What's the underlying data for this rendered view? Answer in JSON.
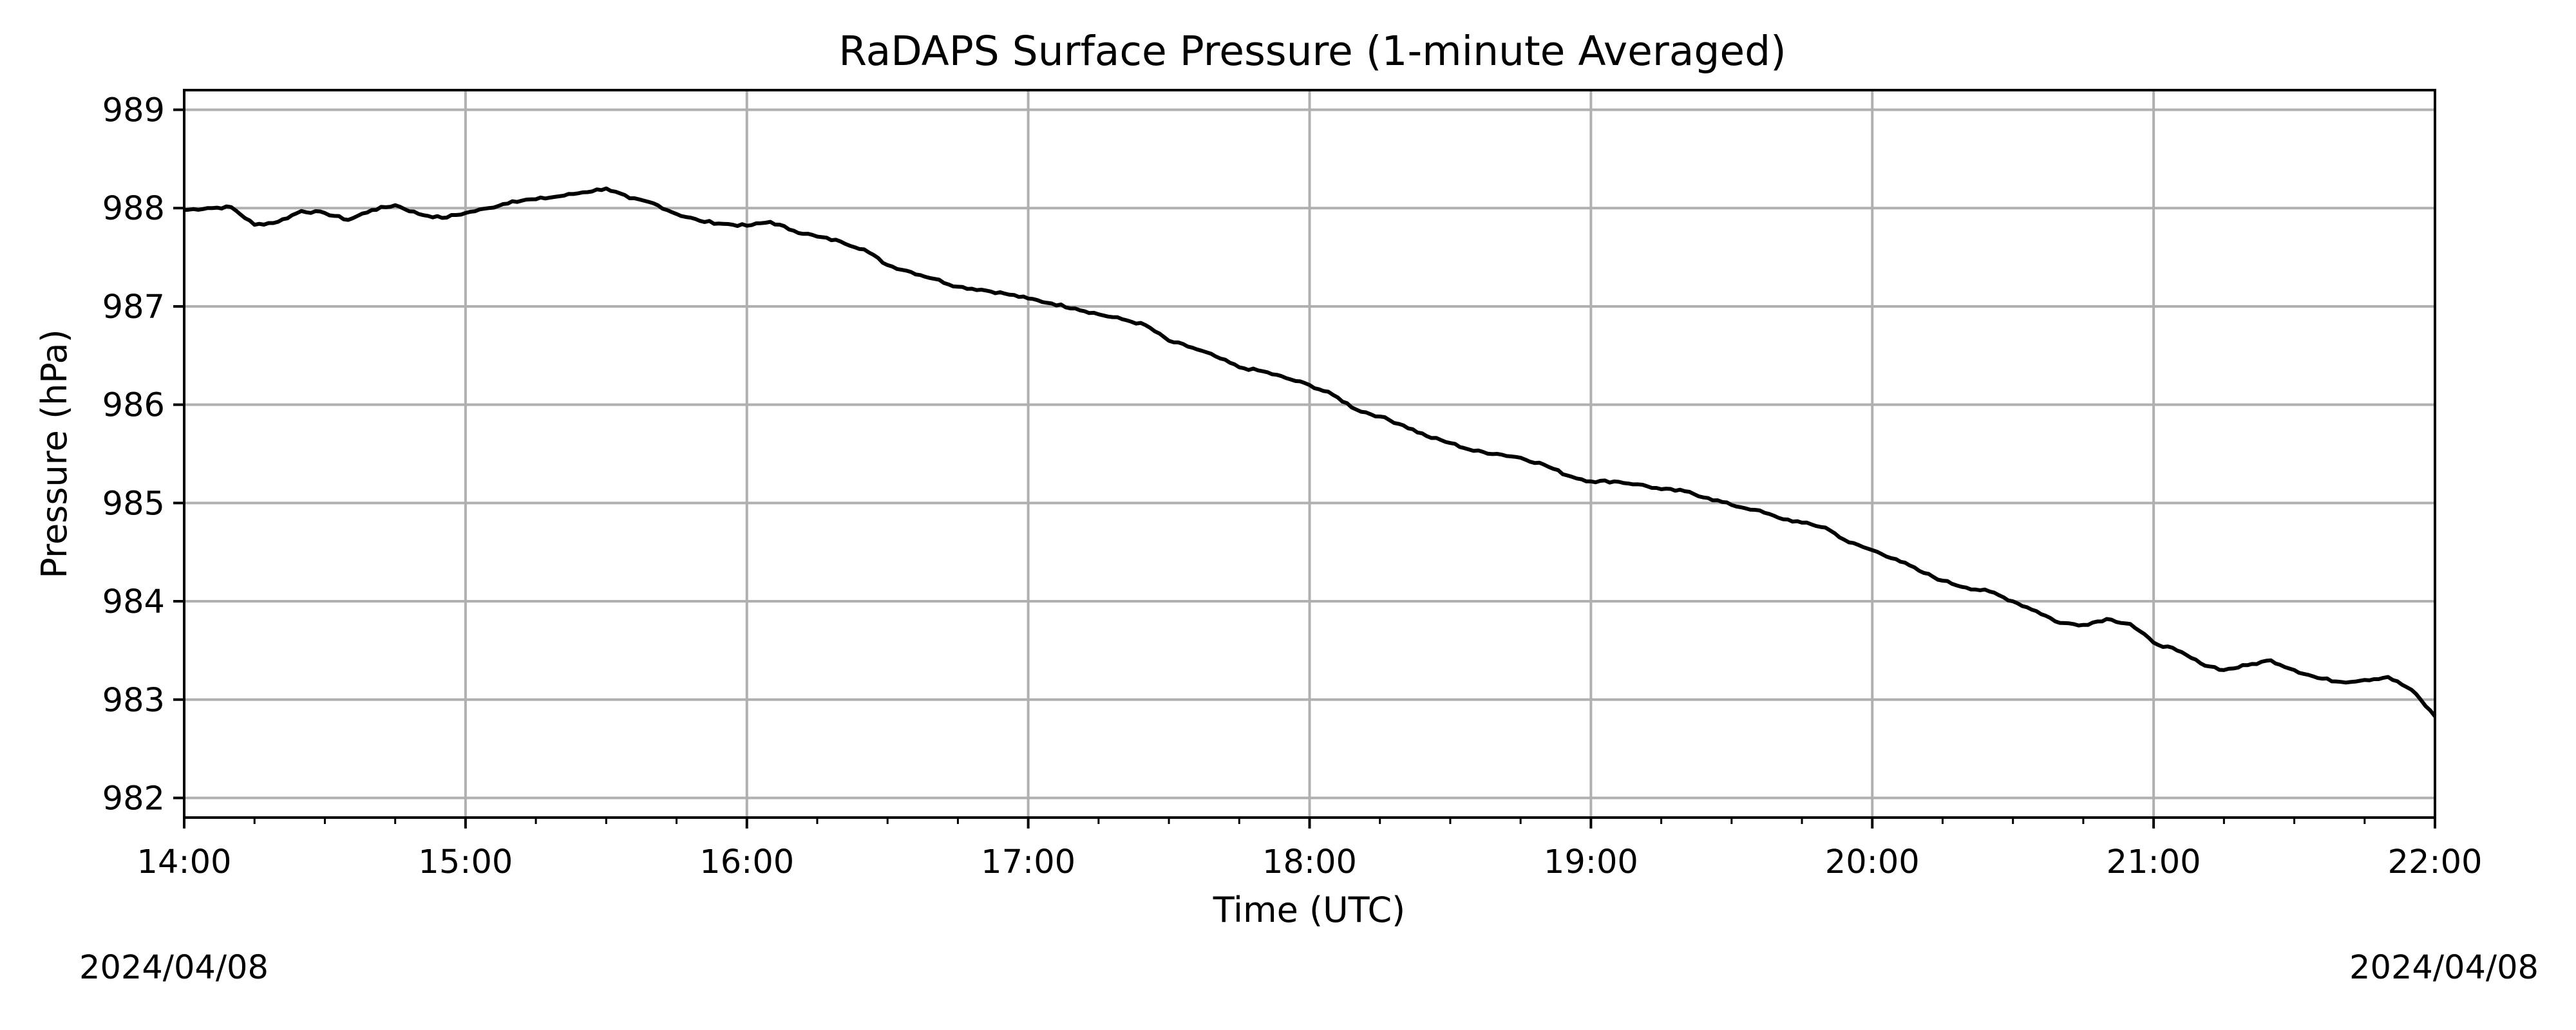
{
  "chart_data": {
    "type": "line",
    "title": "RaDAPS Surface Pressure (1-minute Averaged)",
    "xlabel": "Time (UTC)",
    "ylabel": "Pressure (hPa)",
    "x_ticks": [
      "14:00",
      "15:00",
      "16:00",
      "17:00",
      "18:00",
      "19:00",
      "20:00",
      "21:00",
      "22:00"
    ],
    "y_ticks": [
      982,
      983,
      984,
      985,
      986,
      987,
      988,
      989
    ],
    "xlim": [
      "14:00",
      "22:00"
    ],
    "ylim": [
      981.8,
      989.2
    ],
    "grid": true,
    "line_color": "#000000",
    "series": [
      {
        "x": [
          "14:00",
          "14:05",
          "14:10",
          "14:15",
          "14:20",
          "14:25",
          "14:30",
          "14:35",
          "14:40",
          "14:45",
          "14:50",
          "14:55",
          "15:00",
          "15:05",
          "15:10",
          "15:15",
          "15:20",
          "15:25",
          "15:30",
          "15:35",
          "15:40",
          "15:45",
          "15:50",
          "15:55",
          "16:00",
          "16:05",
          "16:10",
          "16:15",
          "16:20",
          "16:25",
          "16:30",
          "16:35",
          "16:40",
          "16:45",
          "16:50",
          "16:55",
          "17:00",
          "17:05",
          "17:10",
          "17:15",
          "17:20",
          "17:25",
          "17:30",
          "17:35",
          "17:40",
          "17:45",
          "17:50",
          "17:55",
          "18:00",
          "18:05",
          "18:10",
          "18:15",
          "18:20",
          "18:25",
          "18:30",
          "18:35",
          "18:40",
          "18:45",
          "18:50",
          "18:55",
          "19:00",
          "19:05",
          "19:10",
          "19:15",
          "19:20",
          "19:25",
          "19:30",
          "19:35",
          "19:40",
          "19:45",
          "19:50",
          "19:55",
          "20:00",
          "20:05",
          "20:10",
          "20:15",
          "20:20",
          "20:25",
          "20:30",
          "20:35",
          "20:40",
          "20:45",
          "20:50",
          "20:55",
          "21:00",
          "21:05",
          "21:10",
          "21:15",
          "21:20",
          "21:25",
          "21:30",
          "21:35",
          "21:40",
          "21:45",
          "21:50",
          "21:55",
          "22:00"
        ],
        "y": [
          987.98,
          988.0,
          988.01,
          987.83,
          987.86,
          987.97,
          987.95,
          987.88,
          987.98,
          988.03,
          987.94,
          987.9,
          987.95,
          988.0,
          988.07,
          988.09,
          988.12,
          988.16,
          988.2,
          988.1,
          988.05,
          987.94,
          987.87,
          987.84,
          987.82,
          987.86,
          987.77,
          987.71,
          987.66,
          987.58,
          987.42,
          987.35,
          987.28,
          987.2,
          987.17,
          987.13,
          987.08,
          987.03,
          986.98,
          986.92,
          986.87,
          986.81,
          986.65,
          986.58,
          986.49,
          986.38,
          986.34,
          986.27,
          986.2,
          986.1,
          985.95,
          985.88,
          985.79,
          985.68,
          985.61,
          985.53,
          985.5,
          985.46,
          985.39,
          985.28,
          985.22,
          985.22,
          985.19,
          985.14,
          985.12,
          985.05,
          984.98,
          984.93,
          984.85,
          984.8,
          984.75,
          984.6,
          984.52,
          984.43,
          984.31,
          984.21,
          984.14,
          984.1,
          984.0,
          983.9,
          983.78,
          983.76,
          983.82,
          983.77,
          983.58,
          983.5,
          983.37,
          983.3,
          983.35,
          983.4,
          983.3,
          983.22,
          983.18,
          983.2,
          983.23,
          983.1,
          982.83
        ]
      }
    ]
  },
  "footer": {
    "left_date": "2024/04/08",
    "right_date": "2024/04/08"
  }
}
